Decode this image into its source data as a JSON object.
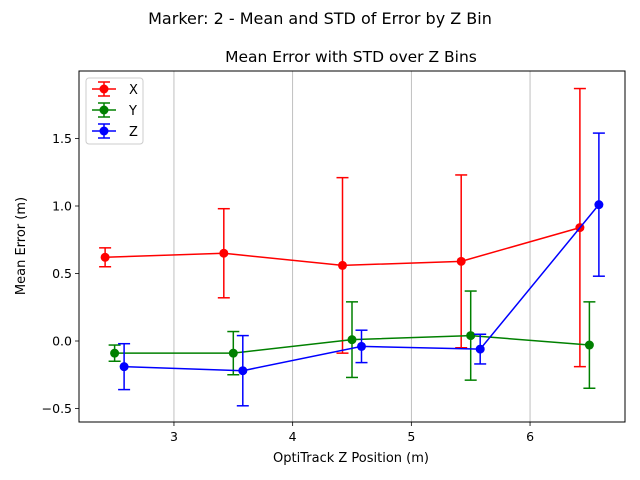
{
  "figure": {
    "suptitle": "Marker: 2 - Mean and STD of Error by Z Bin"
  },
  "chart_data": {
    "type": "line",
    "title": "Mean Error with STD over Z Bins",
    "xlabel": "OptiTrack Z Position (m)",
    "ylabel": "Mean Error (m)",
    "xlim": [
      2.2,
      6.8
    ],
    "ylim": [
      -0.6,
      2.0
    ],
    "xticks": [
      3,
      4,
      5,
      6
    ],
    "xtick_labels": [
      "3",
      "4",
      "5",
      "6"
    ],
    "yticks": [
      -0.5,
      0.0,
      0.5,
      1.0,
      1.5
    ],
    "ytick_labels": [
      "−0.5",
      "0.0",
      "0.5",
      "1.0",
      "1.5"
    ],
    "grid": "x-axis vertical gridlines",
    "legend_position": "top-left",
    "error_bars": "std",
    "series": [
      {
        "name": "X",
        "color": "#ff0000",
        "x": [
          2.42,
          3.42,
          4.42,
          5.42,
          6.42
        ],
        "y": [
          0.62,
          0.65,
          0.56,
          0.59,
          0.84
        ],
        "err": [
          0.07,
          0.33,
          0.65,
          0.64,
          1.03
        ]
      },
      {
        "name": "Y",
        "color": "#008000",
        "x": [
          2.5,
          3.5,
          4.5,
          5.5,
          6.5
        ],
        "y": [
          -0.09,
          -0.09,
          0.01,
          0.04,
          -0.03
        ],
        "err": [
          0.06,
          0.16,
          0.28,
          0.33,
          0.32
        ]
      },
      {
        "name": "Z",
        "color": "#0000ff",
        "x": [
          2.58,
          3.58,
          4.58,
          5.58,
          6.58
        ],
        "y": [
          -0.19,
          -0.22,
          -0.04,
          -0.06,
          1.01
        ],
        "err": [
          0.17,
          0.26,
          0.12,
          0.11,
          0.53
        ]
      }
    ]
  }
}
